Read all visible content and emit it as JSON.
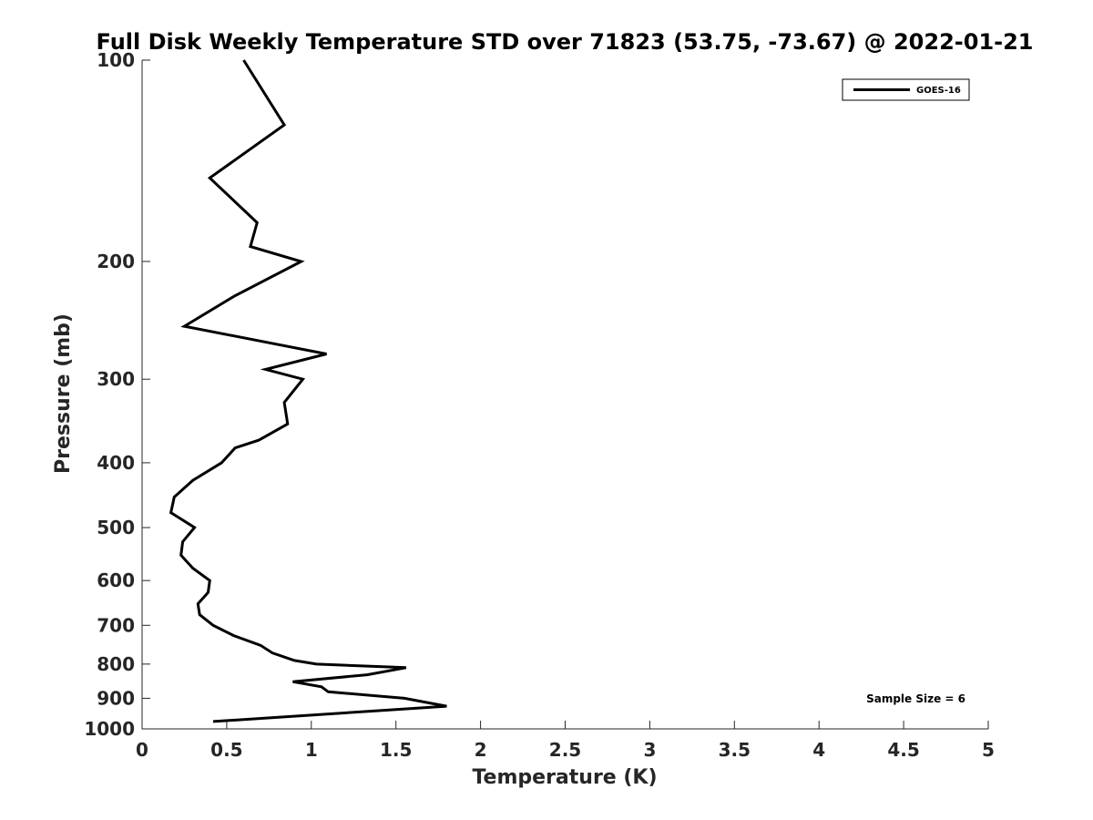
{
  "chart_data": {
    "type": "line",
    "title": "Full Disk Weekly Temperature STD over 71823 (53.75, -73.67) @ 2022-01-21",
    "xlabel": "Temperature (K)",
    "ylabel": "Pressure (mb)",
    "xlim": [
      0,
      5
    ],
    "ylim": [
      100,
      1000
    ],
    "yscale": "log",
    "yreversed": true,
    "xticks": [
      "0",
      "0.5",
      "1",
      "1.5",
      "2",
      "2.5",
      "3",
      "3.5",
      "4",
      "4.5",
      "5"
    ],
    "yticks": [
      "100",
      "200",
      "300",
      "400",
      "500",
      "600",
      "700",
      "800",
      "900",
      "1000"
    ],
    "grid": false,
    "legend": {
      "position": "top-right"
    },
    "annotation": "Sample Size = 6",
    "series": [
      {
        "name": "GOES-16",
        "color": "#000000",
        "points": [
          [
            0.6,
            100
          ],
          [
            0.84,
            125
          ],
          [
            0.4,
            150
          ],
          [
            0.68,
            175
          ],
          [
            0.64,
            190
          ],
          [
            0.94,
            200
          ],
          [
            0.55,
            225
          ],
          [
            0.25,
            250
          ],
          [
            1.09,
            275
          ],
          [
            0.73,
            290
          ],
          [
            0.95,
            300
          ],
          [
            0.84,
            325
          ],
          [
            0.86,
            350
          ],
          [
            0.69,
            370
          ],
          [
            0.55,
            380
          ],
          [
            0.47,
            400
          ],
          [
            0.3,
            425
          ],
          [
            0.19,
            450
          ],
          [
            0.17,
            475
          ],
          [
            0.31,
            500
          ],
          [
            0.24,
            525
          ],
          [
            0.23,
            550
          ],
          [
            0.3,
            575
          ],
          [
            0.4,
            600
          ],
          [
            0.39,
            625
          ],
          [
            0.33,
            650
          ],
          [
            0.34,
            675
          ],
          [
            0.42,
            700
          ],
          [
            0.54,
            725
          ],
          [
            0.7,
            750
          ],
          [
            0.77,
            770
          ],
          [
            0.9,
            790
          ],
          [
            1.03,
            800
          ],
          [
            1.56,
            810
          ],
          [
            1.33,
            830
          ],
          [
            0.89,
            850
          ],
          [
            1.06,
            865
          ],
          [
            1.1,
            880
          ],
          [
            1.55,
            900
          ],
          [
            1.8,
            925
          ],
          [
            0.42,
            975
          ]
        ]
      }
    ]
  }
}
